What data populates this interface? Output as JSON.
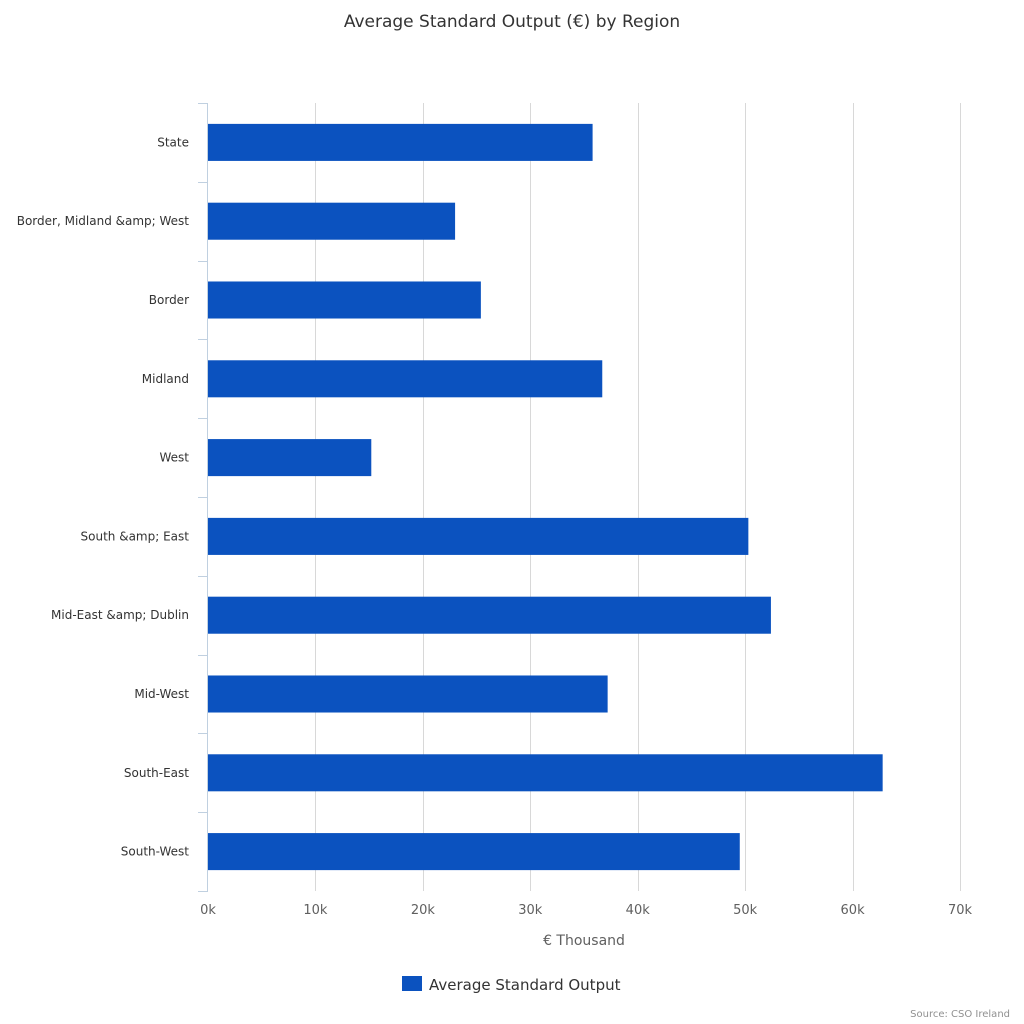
{
  "chart_data": {
    "type": "bar",
    "orientation": "horizontal",
    "title": "Average Standard Output (€) by Region",
    "xlabel": "€ Thousand",
    "ylabel": "",
    "categories": [
      "State",
      "Border, Midland &amp; West",
      "Border",
      "Midland",
      "West",
      "South &amp; East",
      "Mid-East &amp; Dublin",
      "Mid-West",
      "South-East",
      "South-West"
    ],
    "series": [
      {
        "name": "Average Standard Output",
        "color": "#0b52bf",
        "values": [
          35800,
          23000,
          25400,
          36700,
          15200,
          50300,
          52400,
          37200,
          62800,
          49500
        ]
      }
    ],
    "xlim": [
      0,
      70000
    ],
    "ticks": [
      0,
      10000,
      20000,
      30000,
      40000,
      50000,
      60000,
      70000
    ],
    "tick_labels": [
      "0k",
      "10k",
      "20k",
      "30k",
      "40k",
      "50k",
      "60k",
      "70k"
    ],
    "grid": true,
    "legend": "bottom-center",
    "credit": "Source: CSO Ireland"
  }
}
